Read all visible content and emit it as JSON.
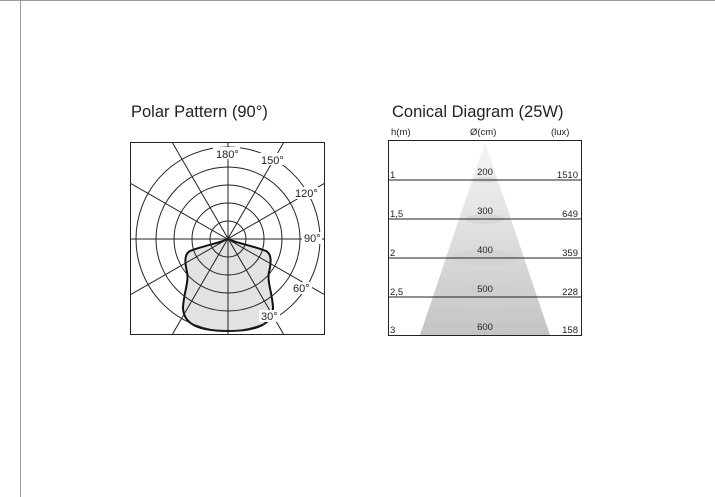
{
  "polar": {
    "title": "Polar Pattern (90°)",
    "angle_labels": [
      "180°",
      "150°",
      "120°",
      "90°",
      "60°",
      "30°"
    ]
  },
  "conical": {
    "title": "Conical Diagram (25W)",
    "headers": {
      "height": "h(m)",
      "diameter": "Ø(cm)",
      "lux": "(lux)"
    },
    "rows": [
      {
        "h": "1",
        "d": "200",
        "lux": "1510"
      },
      {
        "h": "1,5",
        "d": "300",
        "lux": "649"
      },
      {
        "h": "2",
        "d": "400",
        "lux": "359"
      },
      {
        "h": "2,5",
        "d": "500",
        "lux": "228"
      },
      {
        "h": "3",
        "d": "600",
        "lux": "158"
      }
    ]
  }
}
